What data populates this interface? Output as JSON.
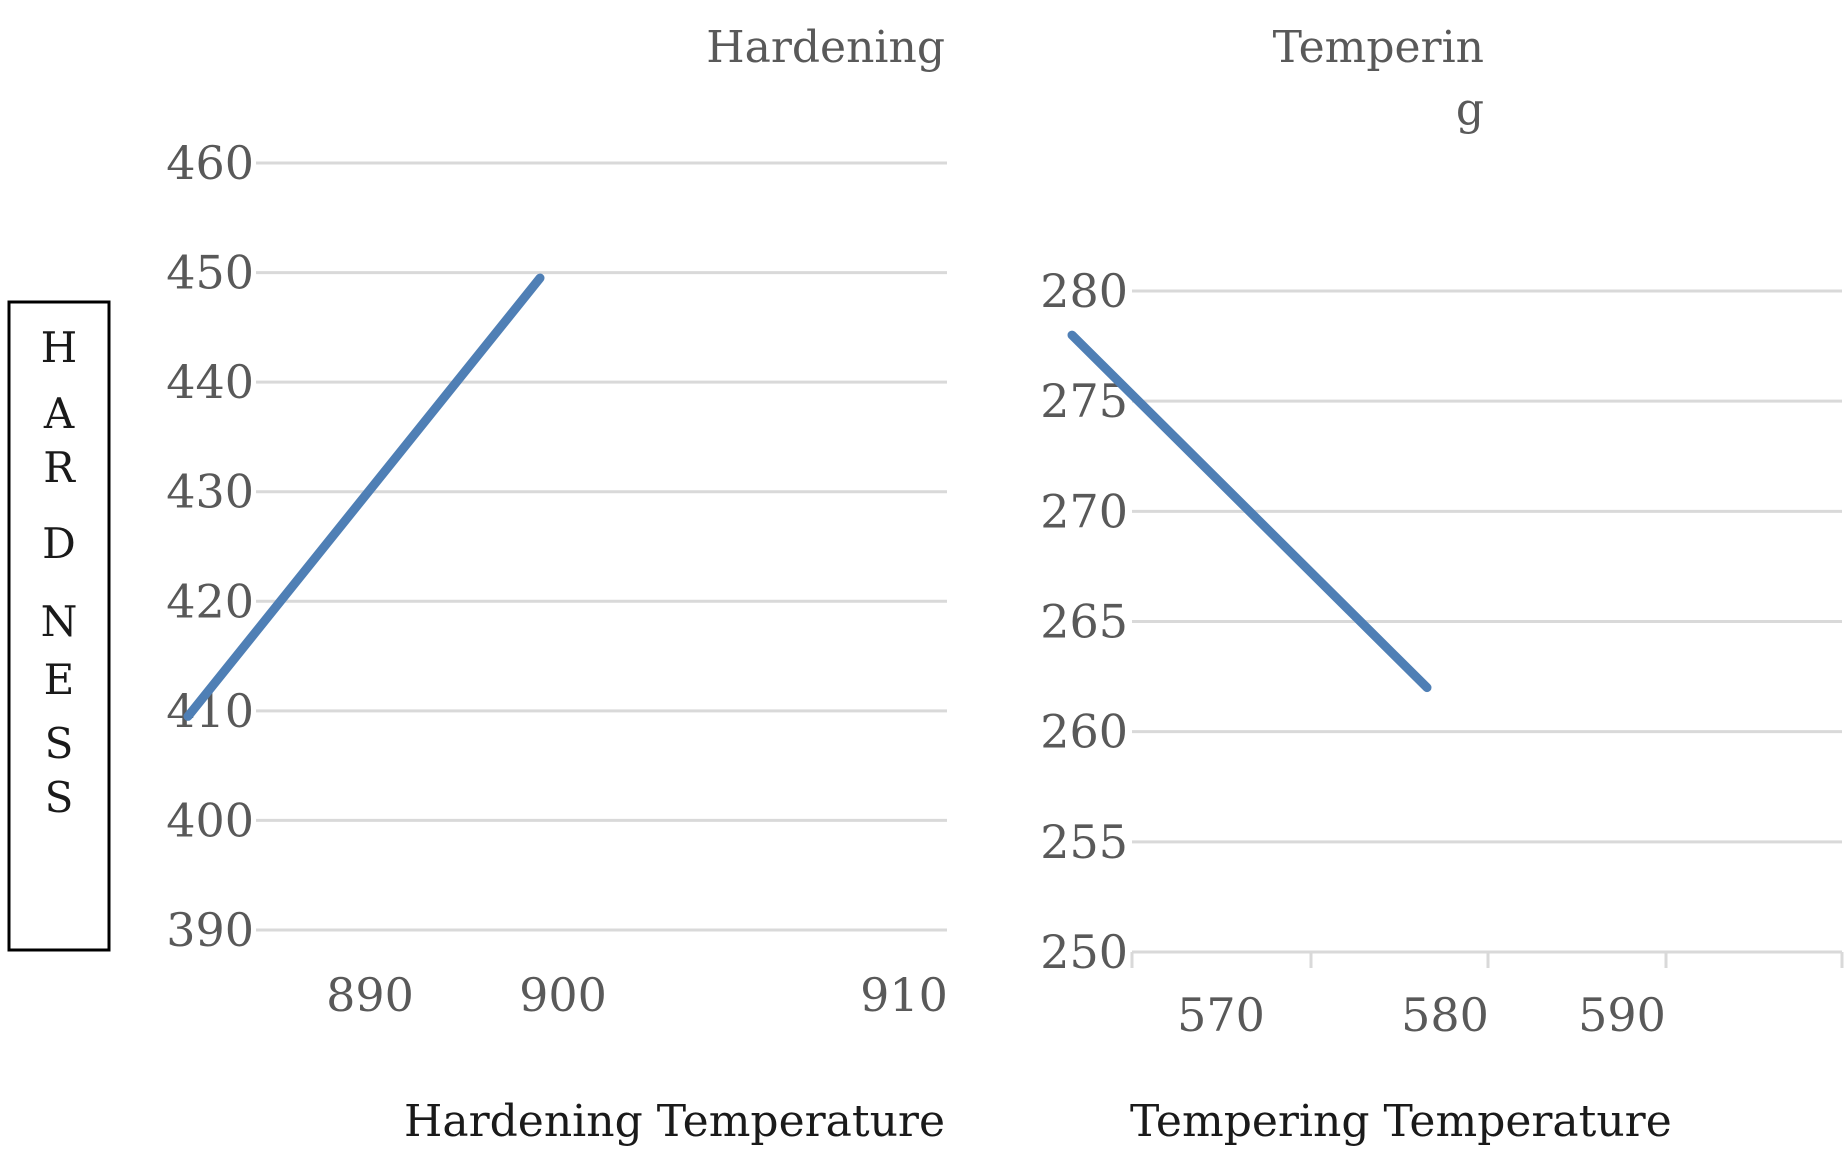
{
  "shared_ylabel": "HARDNESS",
  "chart_data": [
    {
      "type": "line",
      "title": "Hardening",
      "xlabel": "Hardening Temperature",
      "ylabel": "HARDNESS",
      "xticks": [
        "890",
        "900",
        "910"
      ],
      "yticks": [
        "390",
        "400",
        "410",
        "420",
        "430",
        "440",
        "450",
        "460"
      ],
      "ylim": [
        390,
        460
      ],
      "grid": true,
      "series": [
        {
          "x": [
            880,
            900
          ],
          "y": [
            409.5,
            449.5
          ],
          "color": "#4f7fb5"
        }
      ]
    },
    {
      "type": "line",
      "title": "Temperin g",
      "xlabel": "Tempering Temperature",
      "xticks": [
        "570",
        "580",
        "590"
      ],
      "yticks": [
        "250",
        "255",
        "260",
        "265",
        "270",
        "275",
        "280"
      ],
      "ylim": [
        250,
        280
      ],
      "grid": true,
      "series": [
        {
          "x": [
            560,
            580
          ],
          "y": [
            278,
            262
          ],
          "color": "#4f7fb5"
        }
      ]
    }
  ]
}
